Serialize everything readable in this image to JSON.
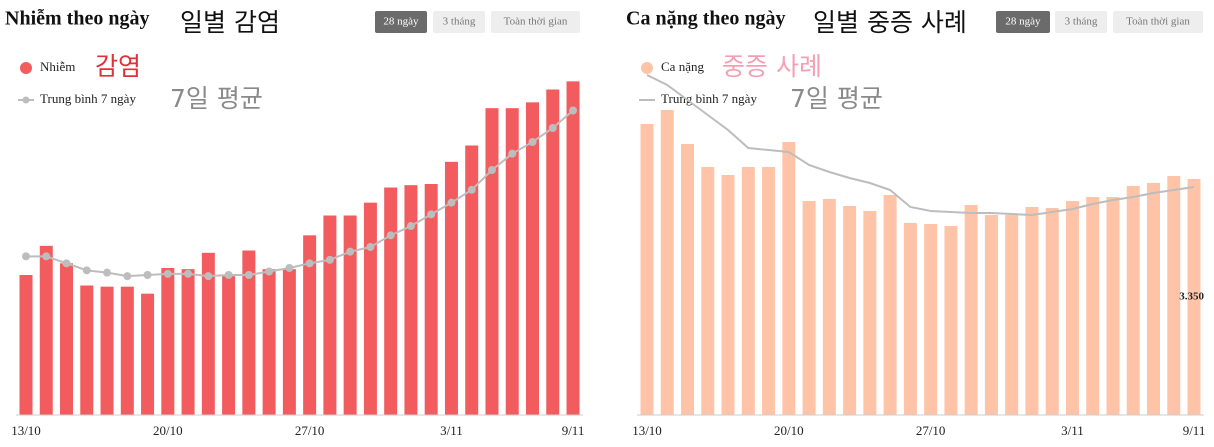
{
  "chart_data": [
    {
      "type": "bar",
      "title": "Nhiễm theo ngày",
      "title_ko": "일별 감염",
      "buttons": [
        "28 ngày",
        "3 tháng",
        "Toàn thời gian"
      ],
      "active_button": 0,
      "categories": [
        "13/10",
        null,
        null,
        null,
        null,
        null,
        null,
        "20/10",
        null,
        null,
        null,
        null,
        null,
        null,
        "27/10",
        null,
        null,
        null,
        null,
        null,
        null,
        "3/11",
        null,
        null,
        null,
        null,
        null,
        "9/11"
      ],
      "ylim": [
        0,
        300
      ],
      "series": [
        {
          "name": "Nhiễm",
          "name_ko": "감염",
          "type": "bar",
          "color": "#f25c5f",
          "label_color": "#e0303a",
          "values": [
            120,
            145,
            130,
            111,
            110,
            110,
            104,
            126,
            125,
            139,
            119,
            141,
            125,
            125,
            154,
            171,
            171,
            182,
            195,
            197,
            198,
            217,
            231,
            263,
            263,
            268,
            279,
            286
          ]
        },
        {
          "name": "Trung bình 7 ngày",
          "name_ko": "7일 평균",
          "type": "line",
          "markers": true,
          "color": "#bdbdbd",
          "label_color": "#8a8a8a",
          "values": [
            136,
            136,
            130,
            124,
            122,
            119,
            120,
            121,
            121,
            119,
            120,
            120,
            123,
            126,
            130,
            133,
            140,
            144,
            154,
            162,
            172,
            182,
            193,
            210,
            224,
            234,
            246,
            261
          ]
        }
      ]
    },
    {
      "type": "bar",
      "title": "Ca nặng theo ngày",
      "title_ko": "일별 중증 사례",
      "buttons": [
        "28 ngày",
        "3 tháng",
        "Toàn thời gian"
      ],
      "active_button": 0,
      "categories": [
        "13/10",
        null,
        null,
        null,
        null,
        null,
        null,
        "20/10",
        null,
        null,
        null,
        null,
        null,
        null,
        "27/10",
        null,
        null,
        null,
        null,
        null,
        null,
        "3/11",
        null,
        null,
        null,
        null,
        null,
        "9/11"
      ],
      "ylim": [
        0,
        350
      ],
      "annotations": [
        "3.350"
      ],
      "series": [
        {
          "name": "Ca nặng",
          "name_ko": "중증 사례",
          "type": "bar",
          "color": "#ffc4a8",
          "label_color": "#f4a0b4",
          "values": [
            291,
            305,
            271,
            248,
            240,
            248,
            248,
            273,
            214,
            216,
            209,
            204,
            220,
            192,
            191,
            189,
            210,
            200,
            200,
            208,
            207,
            214,
            218,
            218,
            229,
            232,
            239,
            236
          ]
        },
        {
          "name": "Trung bình 7 ngày",
          "name_ko": "7일 평균",
          "type": "line",
          "markers": false,
          "color": "#bdbdbd",
          "label_color": "#8a8a8a",
          "values": [
            340,
            330,
            315,
            300,
            285,
            267,
            265,
            263,
            250,
            243,
            237,
            232,
            225,
            208,
            204,
            203,
            202,
            202,
            201,
            200,
            203,
            206,
            211,
            215,
            218,
            222,
            225,
            228
          ]
        }
      ]
    }
  ]
}
